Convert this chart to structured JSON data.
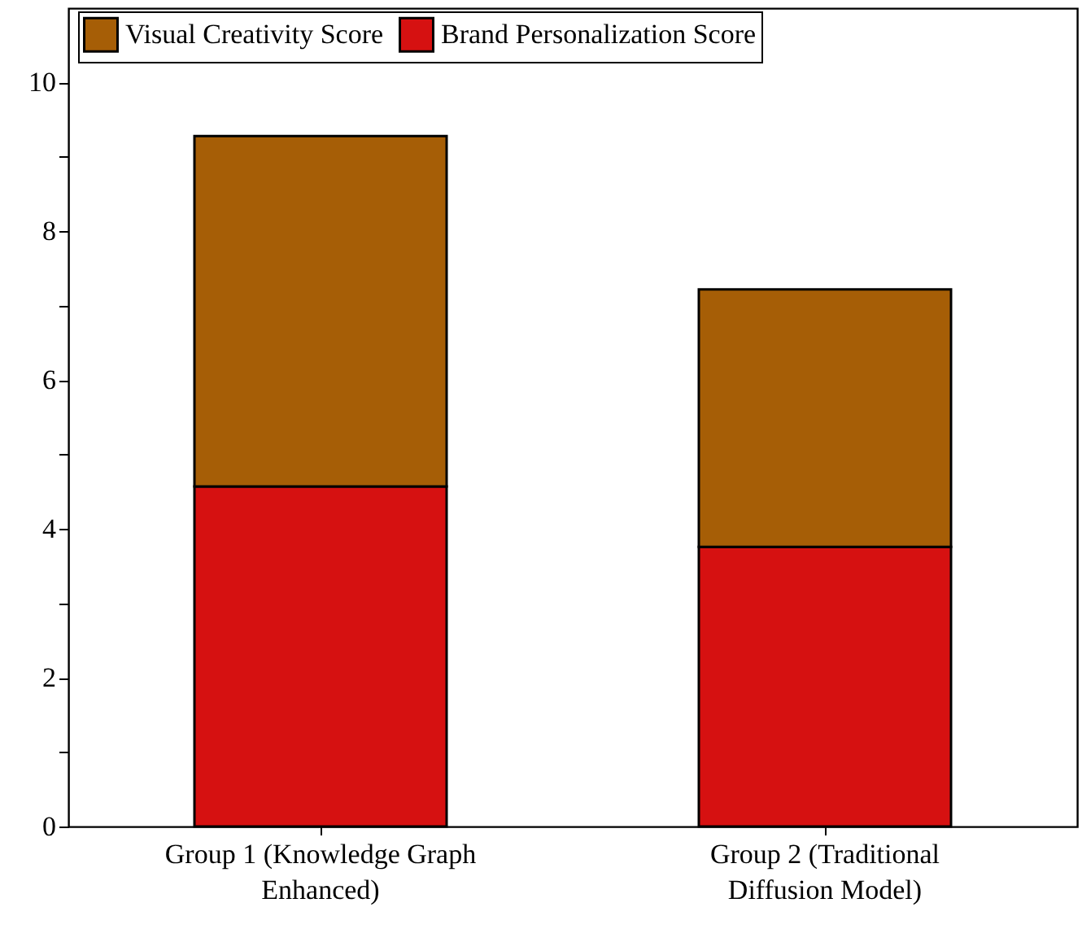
{
  "chart_data": {
    "type": "bar",
    "stacked": true,
    "categories": [
      "Group 1 (Knowledge Graph Enhanced)",
      "Group 2 (Traditional Diffusion Model)"
    ],
    "series": [
      {
        "name": "Brand Personalization Score",
        "color": "#d61111",
        "values": [
          4.57,
          3.76
        ]
      },
      {
        "name": "Visual Creativity Score",
        "color": "#a65e06",
        "values": [
          4.71,
          3.46
        ]
      }
    ],
    "ylim": [
      0,
      11
    ],
    "yticks": [
      0,
      {
        "value": 1,
        "label": null
      },
      2,
      {
        "value": 3,
        "label": null
      },
      4,
      {
        "value": 5,
        "label": null
      },
      6,
      {
        "value": 7,
        "label": null
      },
      8,
      {
        "value": 9,
        "label": null
      },
      10
    ],
    "legend": "top left",
    "grid": false
  }
}
